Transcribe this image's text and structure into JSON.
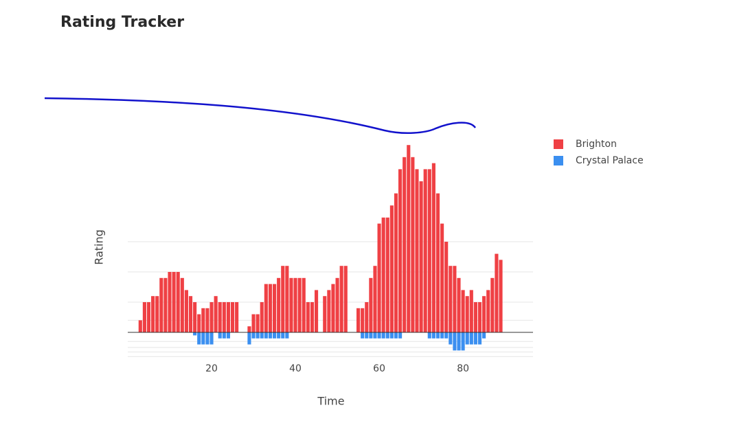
{
  "chart_data": {
    "type": "bar",
    "title": "Rating Tracker",
    "x_label": "Time",
    "y_label": "Rating",
    "x": [
      3,
      4,
      5,
      6,
      7,
      8,
      9,
      10,
      11,
      12,
      13,
      14,
      15,
      16,
      17,
      18,
      19,
      20,
      21,
      22,
      23,
      24,
      25,
      26,
      27,
      28,
      29,
      30,
      31,
      32,
      33,
      34,
      35,
      36,
      37,
      38,
      39,
      40,
      41,
      42,
      43,
      44,
      45,
      46,
      47,
      48,
      49,
      50,
      51,
      52,
      53,
      54,
      55,
      56,
      57,
      58,
      59,
      60,
      61,
      62,
      63,
      64,
      65,
      66,
      67,
      68,
      69,
      70,
      71,
      72,
      73,
      74,
      75,
      76,
      77,
      78,
      79,
      80,
      81,
      82,
      83,
      84,
      85,
      86,
      87,
      88,
      89
    ],
    "series": [
      {
        "name": "Brighton",
        "color": "#ef4044",
        "values": [
          4,
          10,
          10,
          12,
          12,
          18,
          18,
          20,
          20,
          20,
          18,
          14,
          12,
          10,
          6,
          8,
          8,
          10,
          12,
          10,
          10,
          10,
          10,
          10,
          null,
          null,
          2,
          6,
          6,
          10,
          16,
          16,
          16,
          18,
          22,
          22,
          18,
          18,
          18,
          18,
          10,
          10,
          14,
          null,
          12,
          14,
          16,
          18,
          22,
          22,
          null,
          null,
          8,
          8,
          10,
          18,
          22,
          36,
          38,
          38,
          42,
          46,
          54,
          58,
          62,
          58,
          54,
          50,
          54,
          54,
          56,
          46,
          36,
          30,
          22,
          22,
          18,
          14,
          12,
          14,
          10,
          10,
          12,
          14,
          18,
          26,
          24
        ]
      },
      {
        "name": "Crystal Palace",
        "color": "#3b8ff0",
        "values": [
          0,
          0,
          0,
          0,
          0,
          0,
          0,
          0,
          0,
          0,
          0,
          0,
          0,
          -1,
          -4,
          -4,
          -4,
          -4,
          0,
          -2,
          -2,
          -2,
          0,
          0,
          0,
          0,
          -4,
          -2,
          -2,
          -2,
          -2,
          -2,
          -2,
          -2,
          -2,
          -2,
          0,
          0,
          0,
          0,
          0,
          0,
          0,
          0,
          0,
          0,
          0,
          0,
          0,
          0,
          0,
          0,
          0,
          -2,
          -2,
          -2,
          -2,
          -2,
          -2,
          -2,
          -2,
          -2,
          -2,
          0,
          0,
          0,
          0,
          0,
          0,
          -2,
          -2,
          -2,
          -2,
          -2,
          -4,
          -6,
          -6,
          -6,
          -4,
          -4,
          -4,
          -4,
          -2,
          0,
          0,
          0,
          0
        ]
      }
    ],
    "xlim": [
      0,
      96.7
    ],
    "xticks": [
      20,
      40,
      60,
      80
    ],
    "ylim": [
      -10,
      65
    ],
    "yticks": [
      -8,
      -6.5,
      -5,
      -3,
      4,
      10,
      20,
      30
    ],
    "grid": true
  }
}
